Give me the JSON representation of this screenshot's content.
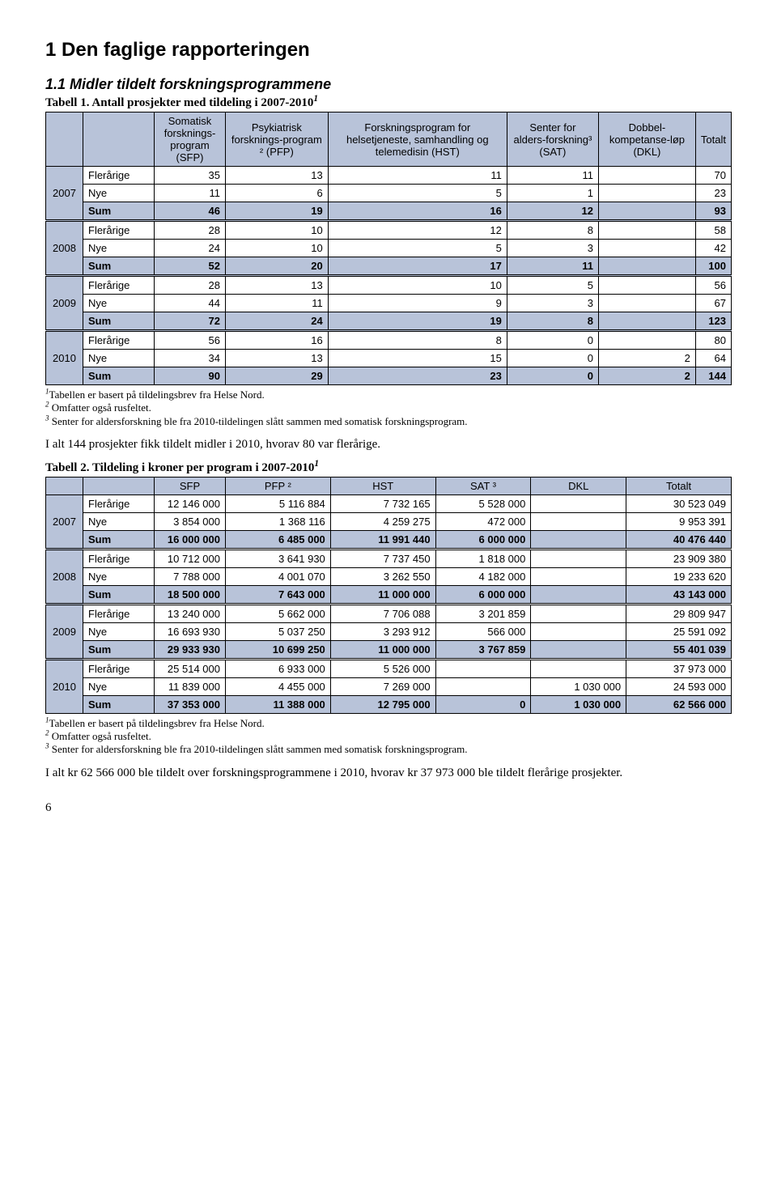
{
  "h1": "1  Den faglige rapporteringen",
  "h2": "1.1  Midler tildelt forskningsprogrammene",
  "t1": {
    "caption_prefix": "Tabell 1.",
    "caption_rest": "  Antall prosjekter med tildeling i 2007-2010",
    "caption_sup": "1",
    "header_row": [
      "",
      "",
      "Somatisk forsknings-program (SFP)",
      "Psykiatrisk forsknings-program ² (PFP)",
      "Forskningsprogram for helsetjeneste, samhandling og telemedisin (HST)",
      "Senter for alders-forskning³ (SAT)",
      "Dobbel-kompetanse-løp (DKL)",
      "Totalt"
    ],
    "years": [
      {
        "y": "2007",
        "rows": [
          {
            "lbl": "Flerårige",
            "v": [
              "35",
              "13",
              "11",
              "11",
              "",
              "70"
            ]
          },
          {
            "lbl": "Nye",
            "v": [
              "11",
              "6",
              "5",
              "1",
              "",
              "23"
            ]
          },
          {
            "lbl": "Sum",
            "v": [
              "46",
              "19",
              "16",
              "12",
              "",
              "93"
            ]
          }
        ]
      },
      {
        "y": "2008",
        "rows": [
          {
            "lbl": "Flerårige",
            "v": [
              "28",
              "10",
              "12",
              "8",
              "",
              "58"
            ]
          },
          {
            "lbl": "Nye",
            "v": [
              "24",
              "10",
              "5",
              "3",
              "",
              "42"
            ]
          },
          {
            "lbl": "Sum",
            "v": [
              "52",
              "20",
              "17",
              "11",
              "",
              "100"
            ]
          }
        ]
      },
      {
        "y": "2009",
        "rows": [
          {
            "lbl": "Flerårige",
            "v": [
              "28",
              "13",
              "10",
              "5",
              "",
              "56"
            ]
          },
          {
            "lbl": "Nye",
            "v": [
              "44",
              "11",
              "9",
              "3",
              "",
              "67"
            ]
          },
          {
            "lbl": "Sum",
            "v": [
              "72",
              "24",
              "19",
              "8",
              "",
              "123"
            ]
          }
        ]
      },
      {
        "y": "2010",
        "rows": [
          {
            "lbl": "Flerårige",
            "v": [
              "56",
              "16",
              "8",
              "0",
              "",
              "80"
            ]
          },
          {
            "lbl": "Nye",
            "v": [
              "34",
              "13",
              "15",
              "0",
              "2",
              "64"
            ]
          },
          {
            "lbl": "Sum",
            "v": [
              "90",
              "29",
              "23",
              "0",
              "2",
              "144"
            ]
          }
        ]
      }
    ]
  },
  "fn1": {
    "l1": "Tabellen er basert på tildelingsbrev fra Helse Nord.",
    "l2": " Omfatter også rusfeltet.",
    "l3": " Senter for aldersforskning ble fra 2010-tildelingen slått sammen med somatisk forskningsprogram."
  },
  "para1": "I alt 144 prosjekter fikk tildelt midler i 2010, hvorav 80 var flerårige.",
  "t2": {
    "caption_prefix": "Tabell 2.",
    "caption_rest": "  Tildeling i kroner per program i 2007-2010",
    "caption_sup": "1",
    "header_cells": [
      "SFP",
      "PFP ²",
      "HST",
      "SAT ³",
      "DKL",
      "Totalt"
    ],
    "years": [
      {
        "y": "2007",
        "rows": [
          {
            "lbl": "Flerårige",
            "v": [
              "12 146 000",
              "5 116 884",
              "7 732 165",
              "5 528 000",
              "",
              "30 523 049"
            ]
          },
          {
            "lbl": "Nye",
            "v": [
              "3 854 000",
              "1 368 116",
              "4 259 275",
              "472 000",
              "",
              "9 953 391"
            ]
          },
          {
            "lbl": "Sum",
            "v": [
              "16 000 000",
              "6 485 000",
              "11 991 440",
              "6 000 000",
              "",
              "40 476 440"
            ]
          }
        ]
      },
      {
        "y": "2008",
        "rows": [
          {
            "lbl": "Flerårige",
            "v": [
              "10 712 000",
              "3 641 930",
              "7 737 450",
              "1 818 000",
              "",
              "23 909 380"
            ]
          },
          {
            "lbl": "Nye",
            "v": [
              "7 788 000",
              "4 001 070",
              "3 262 550",
              "4 182 000",
              "",
              "19 233 620"
            ]
          },
          {
            "lbl": "Sum",
            "v": [
              "18 500 000",
              "7 643 000",
              "11 000 000",
              "6 000 000",
              "",
              "43 143 000"
            ]
          }
        ]
      },
      {
        "y": "2009",
        "rows": [
          {
            "lbl": "Flerårige",
            "v": [
              "13 240 000",
              "5 662 000",
              "7 706 088",
              "3 201 859",
              "",
              "29 809 947"
            ]
          },
          {
            "lbl": "Nye",
            "v": [
              "16 693 930",
              "5 037 250",
              "3 293 912",
              "566 000",
              "",
              "25 591 092"
            ]
          },
          {
            "lbl": "Sum",
            "v": [
              "29 933 930",
              "10 699 250",
              "11 000 000",
              "3 767 859",
              "",
              "55 401 039"
            ]
          }
        ]
      },
      {
        "y": "2010",
        "rows": [
          {
            "lbl": "Flerårige",
            "v": [
              "25 514 000",
              "6 933 000",
              "5 526 000",
              "",
              "",
              "37 973 000"
            ]
          },
          {
            "lbl": "Nye",
            "v": [
              "11 839 000",
              "4 455 000",
              "7 269 000",
              "",
              "1 030 000",
              "24 593 000"
            ]
          },
          {
            "lbl": "Sum",
            "v": [
              "37 353 000",
              "11 388 000",
              "12 795 000",
              "0",
              "1 030 000",
              "62 566 000"
            ]
          }
        ]
      }
    ]
  },
  "fn2": {
    "l1": "Tabellen er basert på tildelingsbrev fra Helse Nord.",
    "l2": " Omfatter også rusfeltet.",
    "l3": " Senter for aldersforskning ble fra 2010-tildelingen slått sammen med somatisk forskningsprogram."
  },
  "para2": "I alt kr 62 566 000 ble tildelt over forskningsprogrammene i 2010, hvorav kr 37 973 000 ble tildelt flerårige prosjekter.",
  "pagenum": "6",
  "colors": {
    "shade": "#b8c3d9",
    "border": "#000000",
    "text": "#000000",
    "bg": "#ffffff"
  }
}
